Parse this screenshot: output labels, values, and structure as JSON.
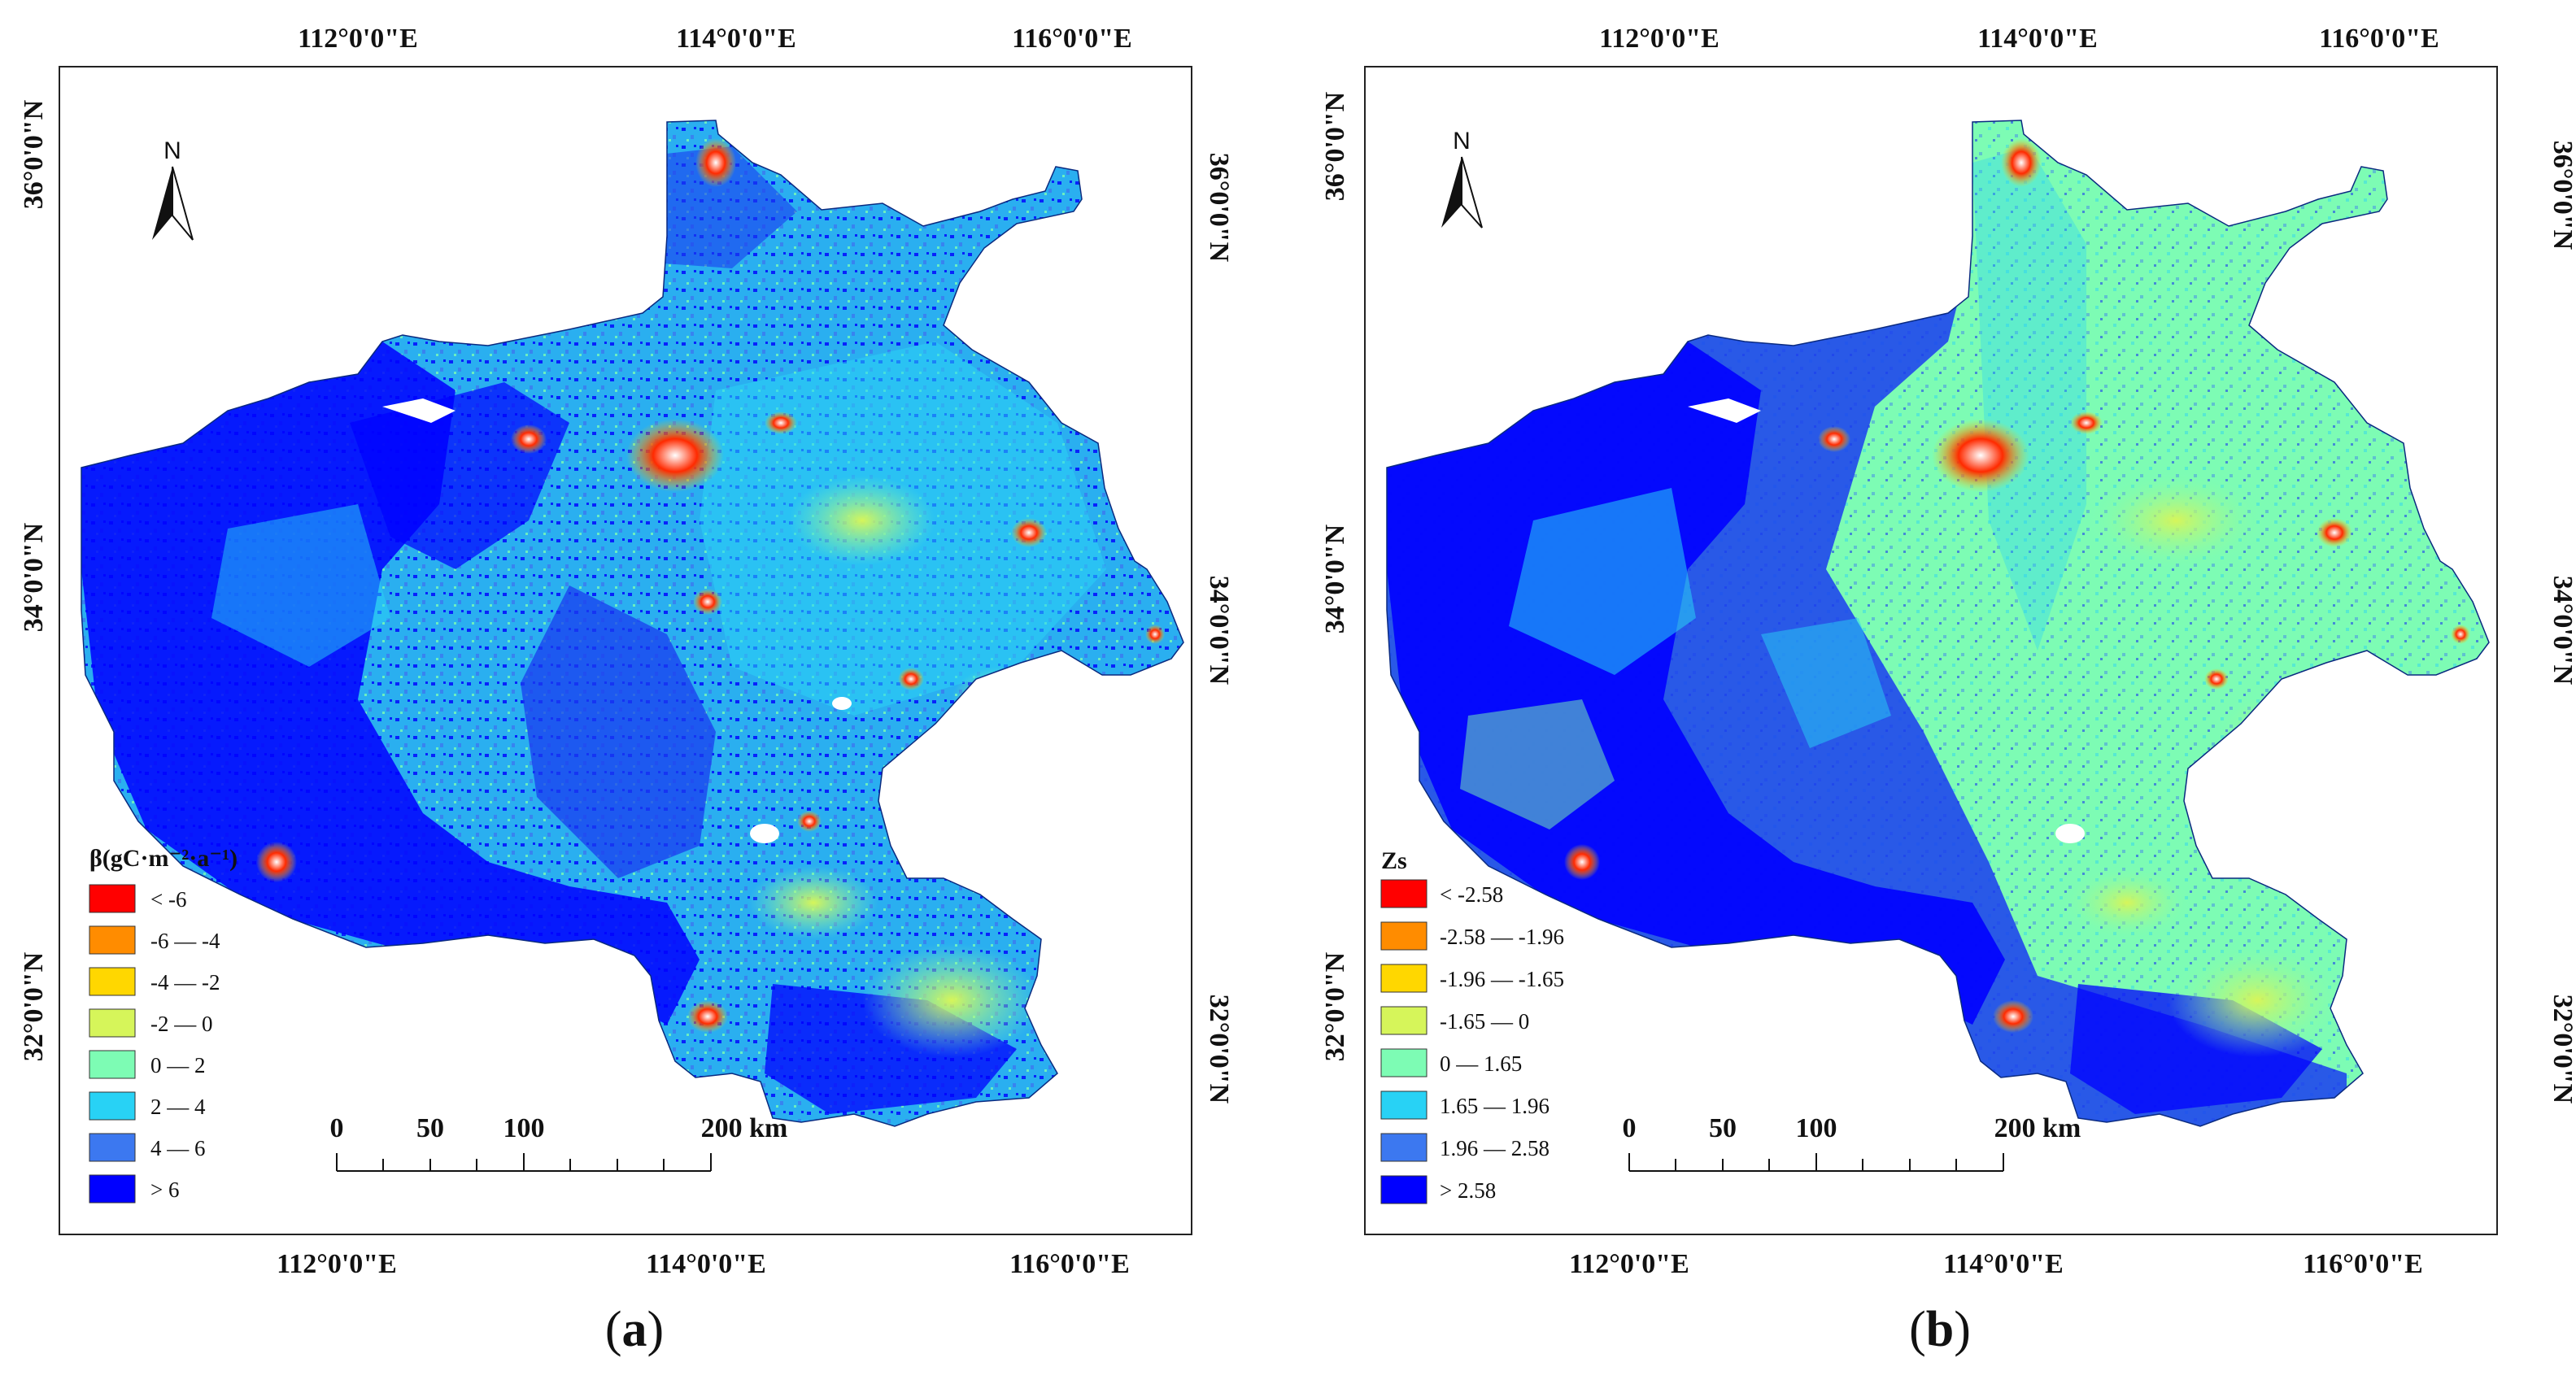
{
  "panels": [
    {
      "id": "a",
      "label": "a",
      "top_lon_labels": [
        "112°0'0\"E",
        "114°0'0\"E",
        "116°0'0\"E"
      ],
      "bottom_lon_labels": [
        "112°0'0\"E",
        "114°0'0\"E",
        "116°0'0\"E"
      ],
      "left_lat_labels": [
        "36°0'0\"N",
        "34°0'0\"N",
        "32°0'0\"N"
      ],
      "right_lat_labels": [
        "36°0'0\"N",
        "34°0'0\"N",
        "32°0'0\"N"
      ],
      "north_label": "N",
      "legend": {
        "title": "β(gC·m⁻²·a⁻¹)",
        "items": [
          {
            "label": "< -6",
            "color": "#ff0000"
          },
          {
            "label": "-6 — -4",
            "color": "#ff8c00"
          },
          {
            "label": "-4 — -2",
            "color": "#ffd700"
          },
          {
            "label": "-2 — 0",
            "color": "#d6f55a"
          },
          {
            "label": "0 — 2",
            "color": "#7dfcb4"
          },
          {
            "label": "2 — 4",
            "color": "#28d2f5"
          },
          {
            "label": "4 — 6",
            "color": "#3c78f0"
          },
          {
            "label": "> 6",
            "color": "#0000ff"
          }
        ]
      },
      "scale_bar": {
        "labels": [
          "0",
          "50",
          "100",
          "200 km"
        ]
      }
    },
    {
      "id": "b",
      "label": "b",
      "top_lon_labels": [
        "112°0'0\"E",
        "114°0'0\"E",
        "116°0'0\"E"
      ],
      "bottom_lon_labels": [
        "112°0'0\"E",
        "114°0'0\"E",
        "116°0'0\"E"
      ],
      "left_lat_labels": [
        "36°0'0\"N",
        "34°0'0\"N",
        "32°0'0\"N"
      ],
      "right_lat_labels": [
        "36°0'0\"N",
        "34°0'0\"N",
        "32°0'0\"N"
      ],
      "north_label": "N",
      "legend": {
        "title": "Zs",
        "items": [
          {
            "label": "< -2.58",
            "color": "#ff0000"
          },
          {
            "label": "-2.58 — -1.96",
            "color": "#ff8c00"
          },
          {
            "label": "-1.96 — -1.65",
            "color": "#ffd700"
          },
          {
            "label": "-1.65 — 0",
            "color": "#d6f55a"
          },
          {
            "label": "0 — 1.65",
            "color": "#7dfcb4"
          },
          {
            "label": "1.65 — 1.96",
            "color": "#28d2f5"
          },
          {
            "label": "1.96 — 2.58",
            "color": "#3c78f0"
          },
          {
            "label": "> 2.58",
            "color": "#0000ff"
          }
        ]
      },
      "scale_bar": {
        "labels": [
          "0",
          "50",
          "100",
          "200 km"
        ]
      }
    }
  ]
}
